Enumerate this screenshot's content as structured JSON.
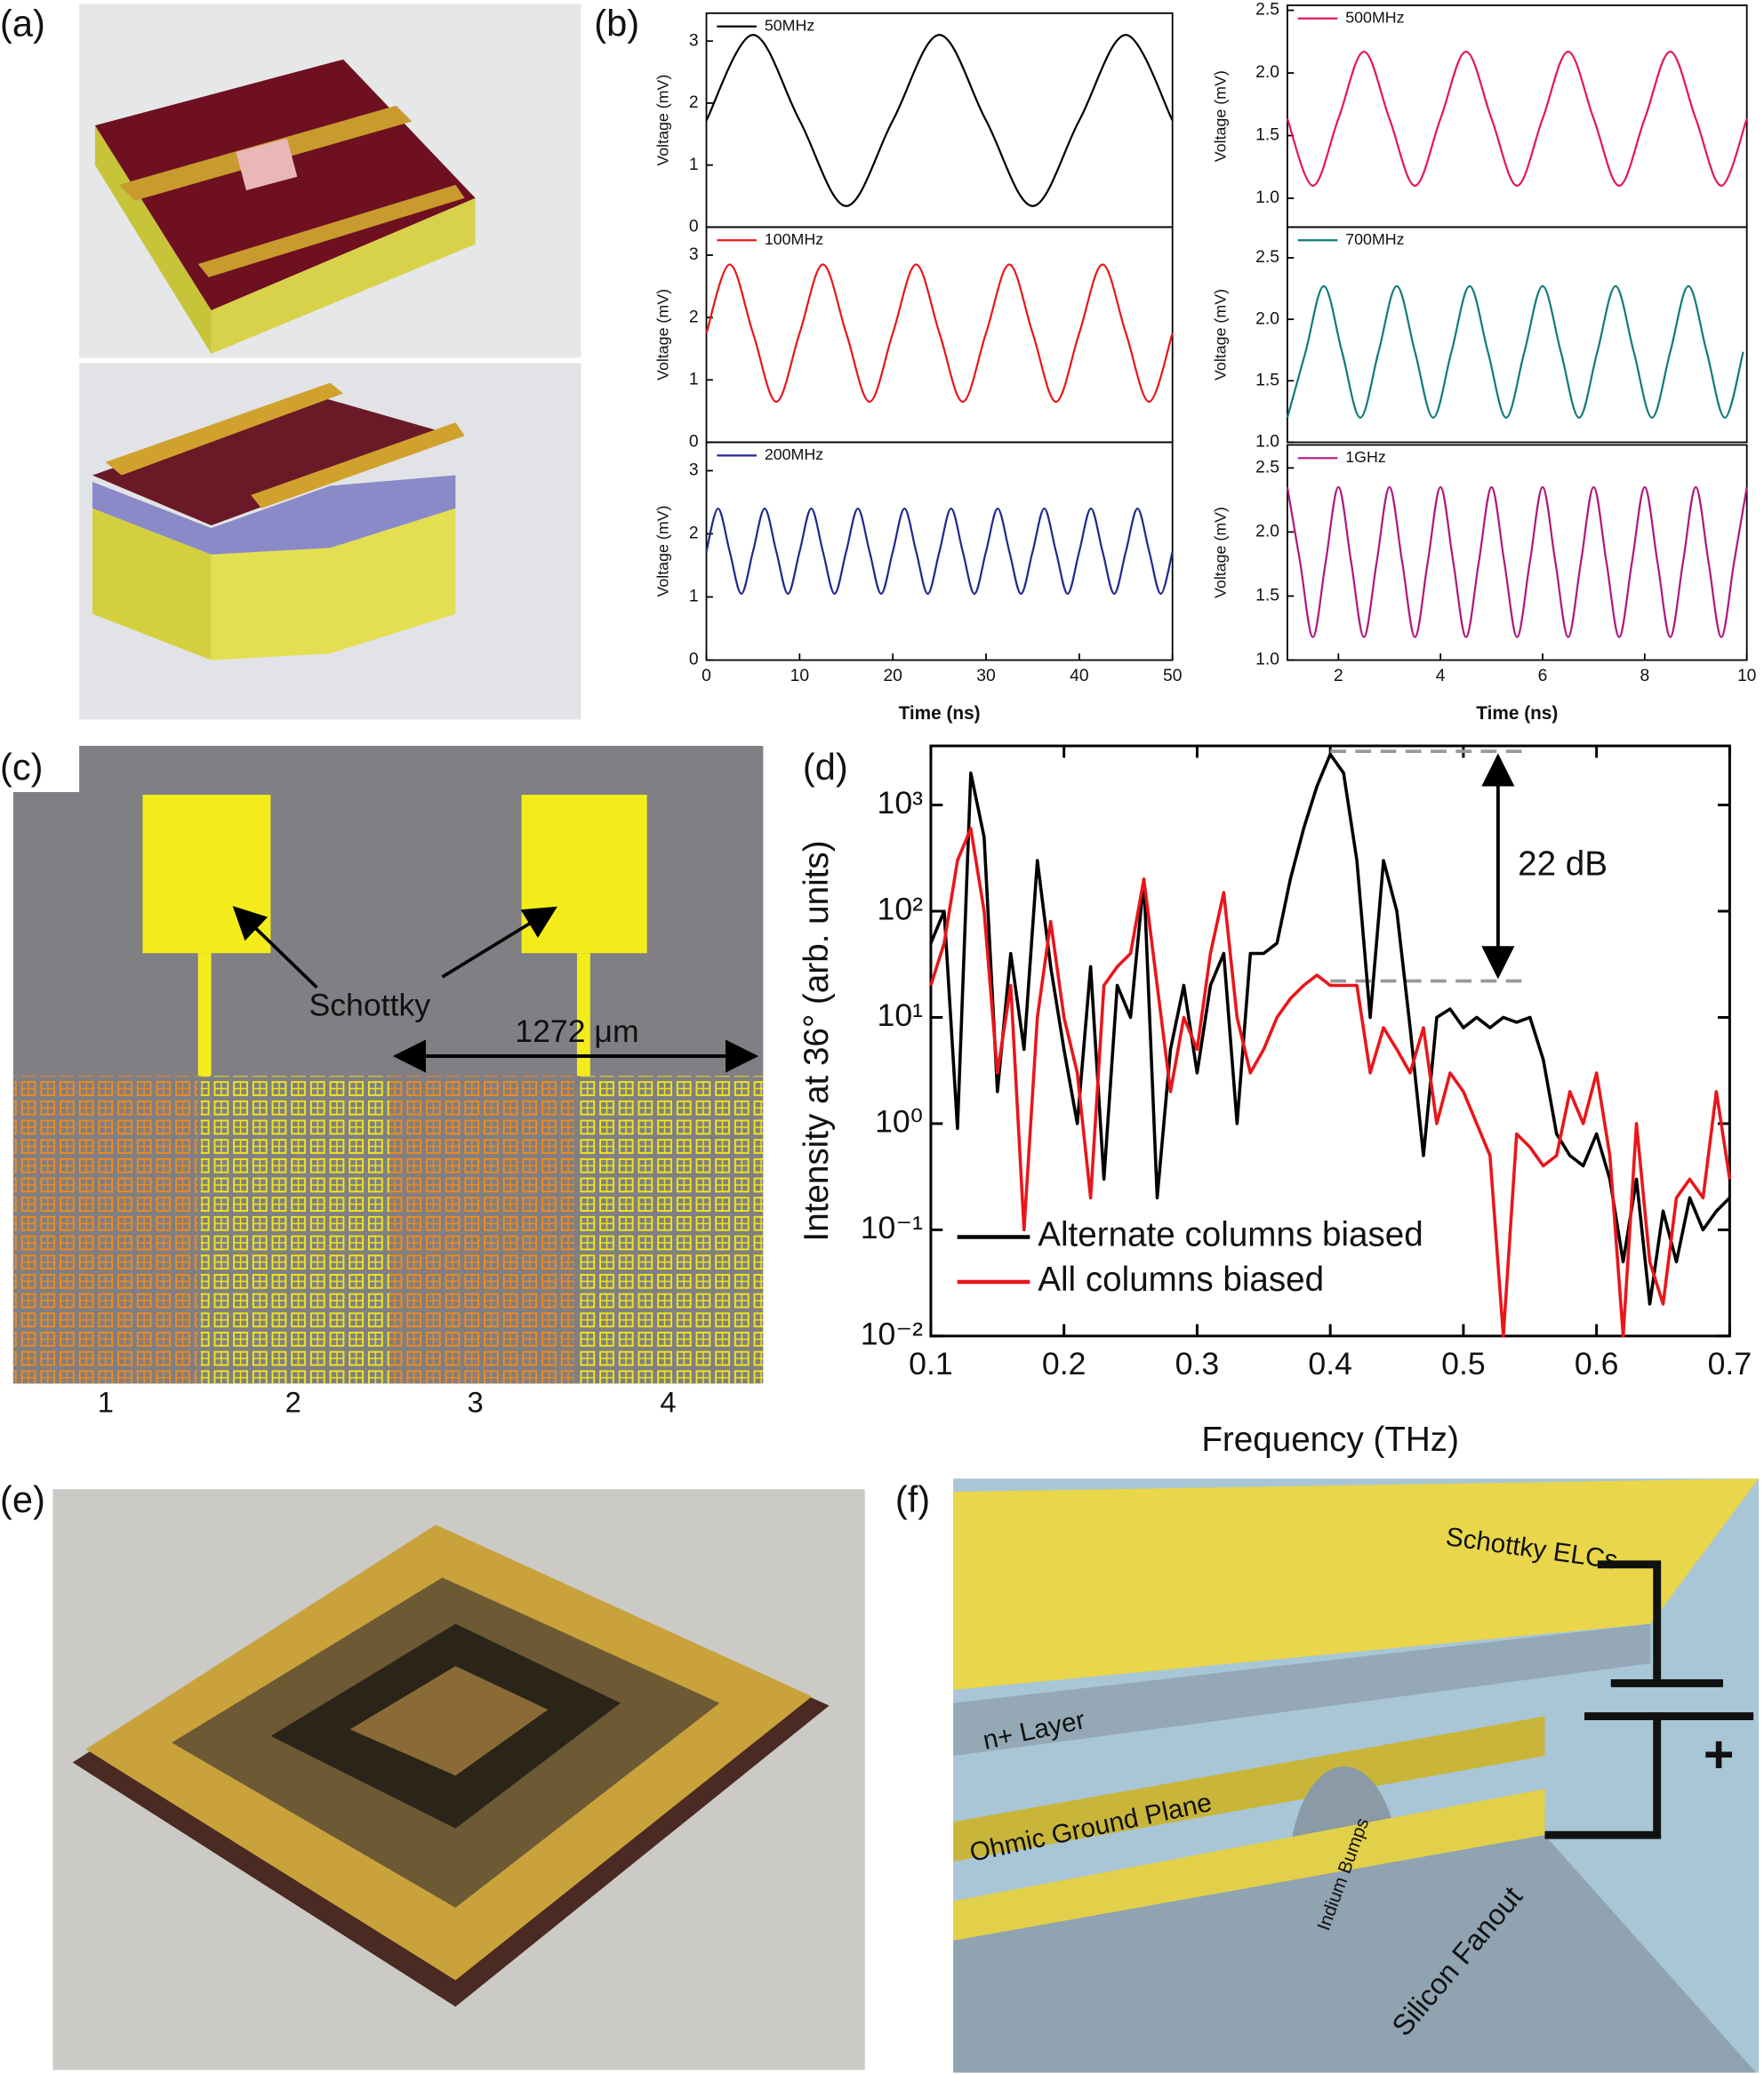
{
  "panel_labels": [
    "(a)",
    "(b)",
    "(c)",
    "(d)",
    "(e)",
    "(f)"
  ],
  "chart_data": [
    {
      "type": "line",
      "smooth": true,
      "legend": "upper left",
      "ylabel": "Voltage (mV)",
      "x": [
        0,
        5,
        10,
        15,
        20,
        25,
        30,
        35,
        40,
        45,
        50
      ],
      "series": [
        {
          "name": "50MHz",
          "color": "#000000",
          "values": [
            1.72,
            3.1,
            1.72,
            0.34,
            1.72,
            3.1,
            1.72,
            0.34,
            1.72,
            3.1,
            1.72
          ]
        }
      ],
      "xlim": [
        0,
        50
      ],
      "ylim": [
        0,
        3.45
      ],
      "yticks": [
        0,
        1,
        2,
        3
      ]
    },
    {
      "type": "line",
      "smooth": true,
      "legend": "upper left",
      "ylabel": "Voltage (mV)",
      "x": [
        0,
        2.5,
        5,
        7.5,
        10,
        12.5,
        15,
        17.5,
        20,
        22.5,
        25,
        27.5,
        30,
        32.5,
        35,
        37.5,
        40,
        42.5,
        45,
        47.5,
        50
      ],
      "series": [
        {
          "name": "100MHz",
          "color": "#e8161b",
          "values": [
            1.75,
            2.85,
            1.75,
            0.65,
            1.75,
            2.85,
            1.75,
            0.65,
            1.75,
            2.85,
            1.75,
            0.65,
            1.75,
            2.85,
            1.75,
            0.65,
            1.75,
            2.85,
            1.75,
            0.65,
            1.75
          ]
        }
      ],
      "xlim": [
        0,
        50
      ],
      "ylim": [
        0,
        3.45
      ],
      "yticks": [
        0,
        1,
        2,
        3
      ]
    },
    {
      "type": "line",
      "smooth": true,
      "legend": "upper left",
      "ylabel": "Voltage (mV)",
      "xlabel": "Time (ns)",
      "x": [
        0,
        1.25,
        2.5,
        3.75,
        5,
        6.25,
        7.5,
        8.75,
        10,
        11.25,
        12.5,
        13.75,
        15,
        16.25,
        17.5,
        18.75,
        20,
        21.25,
        22.5,
        23.75,
        25,
        26.25,
        27.5,
        28.75,
        30,
        31.25,
        32.5,
        33.75,
        35,
        36.25,
        37.5,
        38.75,
        40,
        41.25,
        42.5,
        43.75,
        45,
        46.25,
        47.5,
        48.75,
        50
      ],
      "series": [
        {
          "name": "200MHz",
          "color": "#1f2a8c",
          "values": [
            1.72,
            2.4,
            1.72,
            1.05,
            1.72,
            2.4,
            1.72,
            1.05,
            1.72,
            2.4,
            1.72,
            1.05,
            1.72,
            2.4,
            1.72,
            1.05,
            1.72,
            2.4,
            1.72,
            1.05,
            1.72,
            2.4,
            1.72,
            1.05,
            1.72,
            2.4,
            1.72,
            1.05,
            1.72,
            2.4,
            1.72,
            1.05,
            1.72,
            2.4,
            1.72,
            1.05,
            1.72,
            2.4,
            1.72,
            1.05,
            1.72
          ]
        }
      ],
      "xlim": [
        0,
        50
      ],
      "ylim": [
        0,
        3.45
      ],
      "xticks": [
        0,
        10,
        20,
        30,
        40,
        50
      ],
      "yticks": [
        0,
        1,
        2,
        3
      ]
    },
    {
      "type": "line",
      "smooth": true,
      "legend": "upper left",
      "ylabel": "Voltage (mV)",
      "x": [
        1,
        1.5,
        2,
        2.5,
        3,
        3.5,
        4,
        4.5,
        5,
        5.5,
        6,
        6.5,
        7,
        7.5,
        8,
        8.5,
        9,
        9.5,
        10
      ],
      "series": [
        {
          "name": "500MHz",
          "color": "#e0195a",
          "values": [
            1.635,
            1.1,
            1.635,
            2.17,
            1.635,
            1.1,
            1.635,
            2.17,
            1.635,
            1.1,
            1.635,
            2.17,
            1.635,
            1.1,
            1.635,
            2.17,
            1.635,
            1.1,
            1.635
          ]
        }
      ],
      "xlim": [
        1,
        10
      ],
      "ylim": [
        0.77,
        2.54
      ],
      "yticks": [
        {
          "value": 1,
          "label": "1.0"
        },
        1.5,
        {
          "value": 2,
          "label": "2.0"
        },
        2.5
      ]
    },
    {
      "type": "line",
      "smooth": true,
      "legend": "upper left",
      "ylabel": "Voltage (mV)",
      "x": [
        1,
        1.357,
        1.714,
        2.071,
        2.429,
        2.786,
        3.143,
        3.5,
        3.857,
        4.214,
        4.571,
        4.929,
        5.286,
        5.643,
        6,
        6.357,
        6.714,
        7.071,
        7.429,
        7.786,
        8.143,
        8.5,
        8.857,
        9.214,
        9.571,
        9.929
      ],
      "series": [
        {
          "name": "700MHz",
          "color": "#137a7a",
          "values": [
            1.2,
            1.735,
            2.27,
            1.735,
            1.2,
            1.735,
            2.27,
            1.735,
            1.2,
            1.735,
            2.27,
            1.735,
            1.2,
            1.735,
            2.27,
            1.735,
            1.2,
            1.735,
            2.27,
            1.735,
            1.2,
            1.735,
            2.27,
            1.735,
            1.2,
            1.735
          ]
        }
      ],
      "xlim": [
        1,
        10
      ],
      "ylim": [
        1,
        2.75
      ],
      "yticks": [
        {
          "value": 1,
          "label": "1.0"
        },
        1.5,
        {
          "value": 2,
          "label": "2.0"
        },
        2.5
      ]
    },
    {
      "type": "line",
      "smooth": true,
      "legend": "upper left",
      "ylabel": "Voltage (mV)",
      "xlabel": "Time (ns)",
      "x": [
        1,
        1.25,
        1.5,
        1.75,
        2,
        2.25,
        2.5,
        2.75,
        3,
        3.25,
        3.5,
        3.75,
        4,
        4.25,
        4.5,
        4.75,
        5,
        5.25,
        5.5,
        5.75,
        6,
        6.25,
        6.5,
        6.75,
        7,
        7.25,
        7.5,
        7.75,
        8,
        8.25,
        8.5,
        8.75,
        9,
        9.25,
        9.5,
        9.75,
        10
      ],
      "series": [
        {
          "name": "1GHz",
          "color": "#b0187e",
          "values": [
            2.35,
            1.765,
            1.18,
            1.765,
            2.35,
            1.765,
            1.18,
            1.765,
            2.35,
            1.765,
            1.18,
            1.765,
            2.35,
            1.765,
            1.18,
            1.765,
            2.35,
            1.765,
            1.18,
            1.765,
            2.35,
            1.765,
            1.18,
            1.765,
            2.35,
            1.765,
            1.18,
            1.765,
            2.35,
            1.765,
            1.18,
            1.765,
            2.35,
            1.765,
            1.18,
            1.765,
            2.35
          ]
        }
      ],
      "xlim": [
        1,
        10
      ],
      "ylim": [
        1,
        2.68
      ],
      "xticks": [
        2,
        4,
        6,
        8,
        10
      ],
      "yticks": [
        {
          "value": 1,
          "label": "1.0"
        },
        1.5,
        {
          "value": 2,
          "label": "2.0"
        },
        2.5
      ]
    },
    {
      "type": "line",
      "log_scale": true,
      "legend": "lower left",
      "xlabel": "Frequency (THz)",
      "ylabel": "Intensity at 36° (arb. units)",
      "annotation": "22 dB",
      "reference_lines": [
        3200,
        22
      ],
      "x": [
        0.1,
        0.11,
        0.12,
        0.13,
        0.14,
        0.15,
        0.16,
        0.17,
        0.18,
        0.19,
        0.2,
        0.21,
        0.22,
        0.23,
        0.24,
        0.25,
        0.26,
        0.27,
        0.28,
        0.29,
        0.3,
        0.31,
        0.32,
        0.33,
        0.34,
        0.35,
        0.36,
        0.37,
        0.38,
        0.39,
        0.4,
        0.41,
        0.42,
        0.43,
        0.44,
        0.45,
        0.46,
        0.47,
        0.48,
        0.49,
        0.5,
        0.51,
        0.52,
        0.53,
        0.54,
        0.55,
        0.56,
        0.57,
        0.58,
        0.59,
        0.6,
        0.61,
        0.62,
        0.63,
        0.64,
        0.65,
        0.66,
        0.67,
        0.68,
        0.69,
        0.7
      ],
      "series": [
        {
          "name": "Alternate columns biased",
          "color": "#000000",
          "values": [
            50,
            100,
            0.9,
            2000,
            500,
            2,
            40,
            5,
            300,
            30,
            5,
            1,
            30,
            0.3,
            20,
            10,
            200,
            0.2,
            5,
            20,
            3,
            20,
            40,
            1,
            40,
            40,
            50,
            200,
            600,
            1500,
            3000,
            2000,
            300,
            10,
            300,
            100,
            8,
            0.5,
            10,
            12,
            8,
            10,
            8,
            10,
            9,
            10,
            4,
            0.8,
            0.5,
            0.4,
            0.8,
            0.3,
            0.05,
            0.3,
            0.02,
            0.15,
            0.05,
            0.2,
            0.1,
            0.15,
            0.2
          ]
        },
        {
          "name": "All columns biased",
          "color": "#e8161b",
          "values": [
            20,
            50,
            300,
            600,
            100,
            3,
            20,
            0.1,
            10,
            80,
            10,
            3,
            0.2,
            20,
            30,
            40,
            200,
            20,
            2,
            10,
            5,
            40,
            150,
            10,
            3,
            5,
            10,
            15,
            20,
            25,
            20,
            20,
            20,
            3,
            8,
            5,
            3,
            8,
            1,
            3,
            2,
            1,
            0.5,
            0.01,
            0.8,
            0.6,
            0.4,
            0.5,
            2,
            1,
            3,
            0.5,
            0.01,
            1,
            0.05,
            0.02,
            0.2,
            0.3,
            0.2,
            2,
            0.3
          ]
        }
      ],
      "xlim": [
        0.1,
        0.7
      ],
      "ylim": [
        0.01,
        3600
      ],
      "xticks": [
        0.1,
        0.2,
        0.3,
        0.4,
        0.5,
        0.6,
        0.7
      ],
      "yticks": [
        {
          "value": 0.01,
          "label": "10⁻²"
        },
        {
          "value": 0.1,
          "label": "10⁻¹"
        },
        {
          "value": 1,
          "label": "10⁰"
        },
        {
          "value": 10,
          "label": "10¹"
        },
        {
          "value": 100,
          "label": "10²"
        },
        {
          "value": 1000,
          "label": "10³"
        }
      ]
    }
  ],
  "panel_c": {
    "annotation": "Schottky",
    "dimension": "1272 μm",
    "column_labels": [
      "1",
      "2",
      "3",
      "4"
    ]
  },
  "panel_f": {
    "labels": [
      "Schottky ELCs",
      "n+ Layer",
      "Ohmic Ground Plane",
      "Indium Bumps",
      "Silicon Fanout",
      "+"
    ]
  }
}
